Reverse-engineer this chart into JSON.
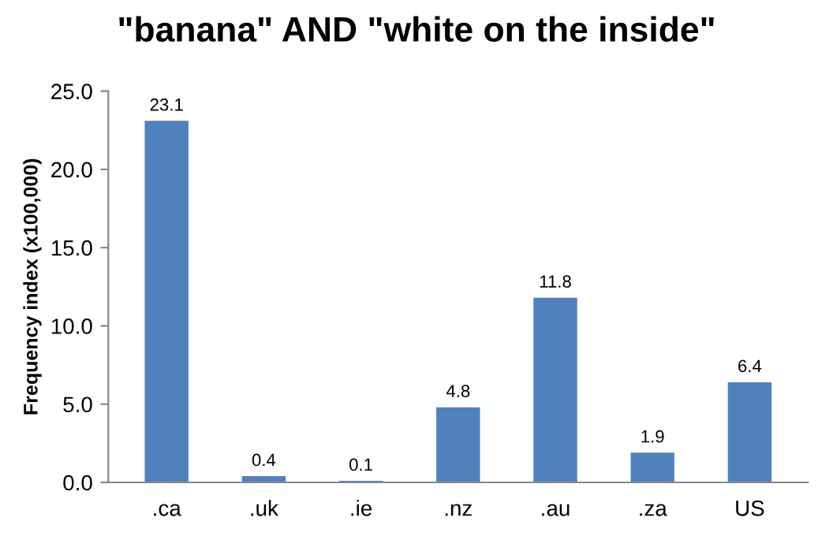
{
  "chart_data": {
    "type": "bar",
    "title": "\"banana\" AND \"white on the inside\"",
    "ylabel": "Frequency index (x100,000)",
    "categories": [
      ".ca",
      ".uk",
      ".ie",
      ".nz",
      ".au",
      ".za",
      "US"
    ],
    "values": [
      23.1,
      0.4,
      0.1,
      4.8,
      11.8,
      1.9,
      6.4
    ],
    "color": "#4f81bd",
    "ylim": [
      0,
      25
    ],
    "yticks": [
      {
        "value": 0,
        "label": "0.0"
      },
      {
        "value": 5,
        "label": "5.0"
      },
      {
        "value": 10,
        "label": "10.0"
      },
      {
        "value": 15,
        "label": "15.0"
      },
      {
        "value": 20,
        "label": "20.0"
      },
      {
        "value": 25,
        "label": "25.0"
      }
    ],
    "data_labels": true,
    "grid": false,
    "legend": false
  }
}
